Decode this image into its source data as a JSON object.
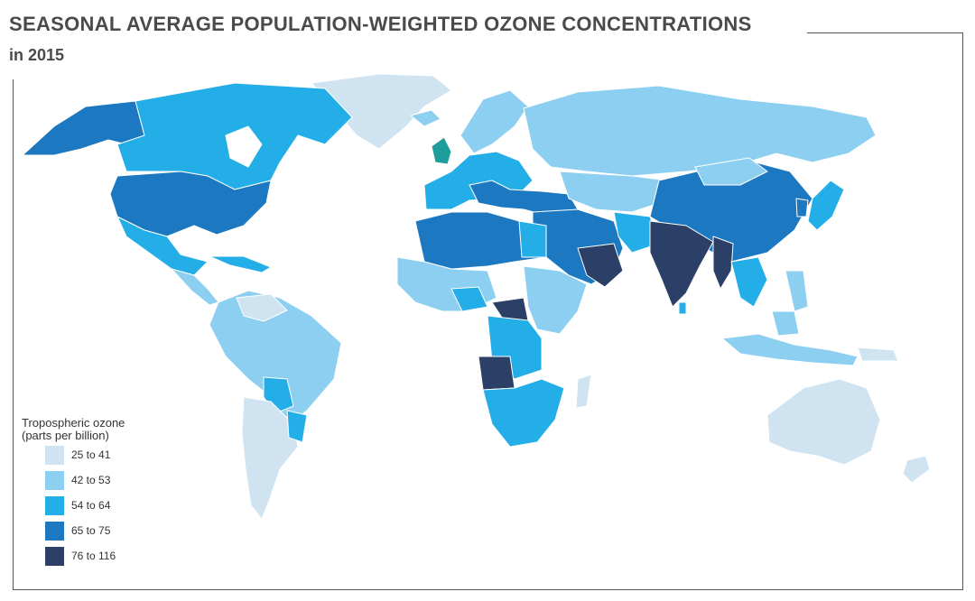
{
  "title": "SEASONAL AVERAGE POPULATION-WEIGHTED OZONE CONCENTRATIONS",
  "subtitle": "in 2015",
  "legend": {
    "title_line1": "Tropospheric ozone",
    "title_line2": "(parts per billion)",
    "items": [
      {
        "label": "25 to 41",
        "color": "#cfe3f1"
      },
      {
        "label": "42 to 53",
        "color": "#8ccff0"
      },
      {
        "label": "54 to 64",
        "color": "#24aee7"
      },
      {
        "label": "65 to 75",
        "color": "#1b78c1"
      },
      {
        "label": "76 to 116",
        "color": "#2b3f67"
      }
    ]
  },
  "colors": {
    "c1": "#cfe3f1",
    "c2": "#8ccff0",
    "c3": "#24aee7",
    "c4": "#1b78c1",
    "c5": "#2b3f67",
    "uk": "#1e9e9a"
  }
}
